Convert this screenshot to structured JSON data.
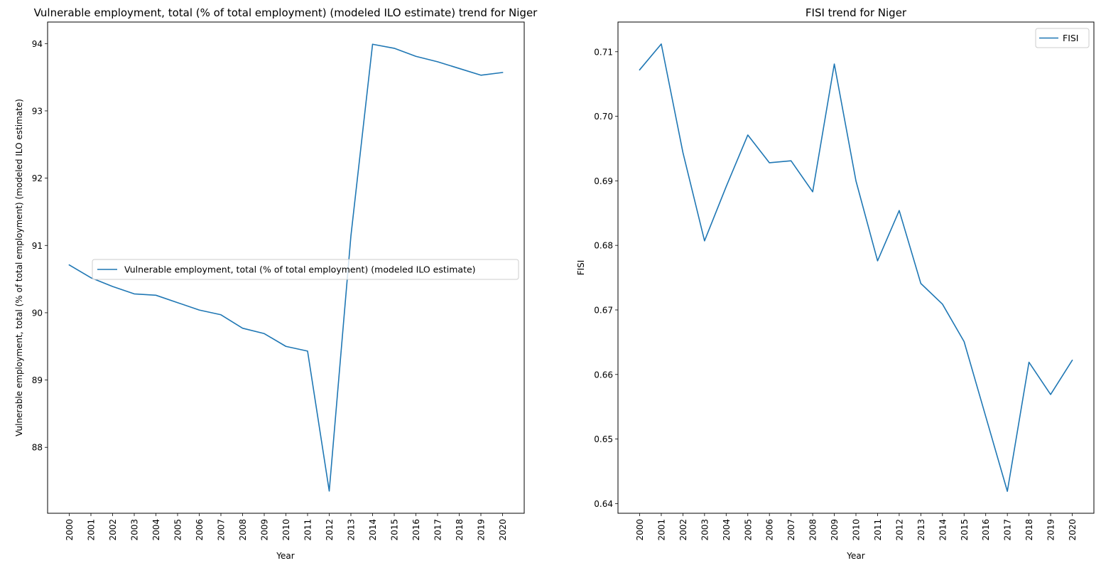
{
  "chart_data": [
    {
      "type": "line",
      "title": "Vulnerable employment, total (% of total employment) (modeled ILO estimate) trend for Niger",
      "xlabel": "Year",
      "ylabel": "Vulnerable employment, total (% of total employment) (modeled ILO estimate)",
      "x": [
        "2000",
        "2001",
        "2002",
        "2003",
        "2004",
        "2005",
        "2006",
        "2007",
        "2008",
        "2009",
        "2010",
        "2011",
        "2012",
        "2013",
        "2014",
        "2015",
        "2016",
        "2017",
        "2018",
        "2019",
        "2020"
      ],
      "series": [
        {
          "name": "Vulnerable employment, total (% of total employment) (modeled ILO estimate)",
          "color": "#1f77b4",
          "values": [
            90.71,
            90.52,
            90.39,
            90.28,
            90.26,
            90.15,
            90.04,
            89.97,
            89.77,
            89.69,
            89.5,
            89.43,
            87.35,
            91.14,
            93.99,
            93.93,
            93.81,
            93.73,
            93.63,
            93.53,
            93.57
          ]
        }
      ],
      "yticks": [
        "88",
        "89",
        "90",
        "91",
        "92",
        "93",
        "94"
      ],
      "ylim": [
        87.02,
        94.32
      ],
      "grid": false,
      "legend_position": "center-right"
    },
    {
      "type": "line",
      "title": "FISI trend for Niger",
      "xlabel": "Year",
      "ylabel": "FISI",
      "x": [
        "2000",
        "2001",
        "2002",
        "2003",
        "2004",
        "2005",
        "2006",
        "2007",
        "2008",
        "2009",
        "2010",
        "2011",
        "2012",
        "2013",
        "2014",
        "2015",
        "2016",
        "2017",
        "2018",
        "2019",
        "2020"
      ],
      "series": [
        {
          "name": "FISI",
          "color": "#1f77b4",
          "values": [
            0.7072,
            0.7112,
            0.6944,
            0.6807,
            0.6891,
            0.6971,
            0.6928,
            0.6931,
            0.6883,
            0.7081,
            0.69,
            0.6776,
            0.6854,
            0.6741,
            0.6709,
            0.6651,
            0.6535,
            0.6419,
            0.6619,
            0.6569,
            0.6622
          ]
        }
      ],
      "yticks": [
        "0.64",
        "0.65",
        "0.66",
        "0.67",
        "0.68",
        "0.69",
        "0.70",
        "0.71"
      ],
      "ylim": [
        0.6385,
        0.7146
      ],
      "grid": false,
      "legend_position": "top-right"
    }
  ]
}
